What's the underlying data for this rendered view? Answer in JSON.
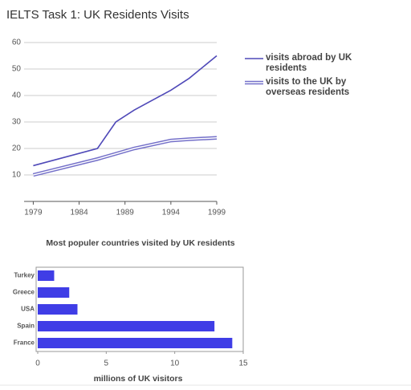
{
  "page_title": "IELTS Task 1: UK Residents Visits",
  "chart_data": [
    {
      "type": "line",
      "x": [
        1979,
        1986,
        1988,
        1990,
        1994,
        1996,
        1999
      ],
      "xlim": [
        1978,
        1999
      ],
      "xticks": [
        1979,
        1984,
        1989,
        1994,
        1999
      ],
      "ylim": [
        0,
        60
      ],
      "yticks": [
        10,
        20,
        30,
        40,
        50,
        60
      ],
      "grid": true,
      "series": [
        {
          "name": "visits abroad by UK residents",
          "color": "#4f49b8",
          "values": [
            13.5,
            20,
            30,
            34.5,
            42,
            46.5,
            55
          ]
        },
        {
          "name": "visits to the UK by overseas residents",
          "color": "#7470c9",
          "values": [
            10,
            16,
            18,
            20,
            23,
            23.5,
            24
          ]
        }
      ]
    },
    {
      "type": "hbar",
      "title": "Most populer countries visited by UK residents",
      "categories": [
        "Turkey",
        "Greece",
        "USA",
        "Spain",
        "France"
      ],
      "values": [
        1.2,
        2.3,
        2.9,
        12.9,
        14.2
      ],
      "color": "#3f3de6",
      "xlim": [
        0,
        15
      ],
      "xticks": [
        0,
        5,
        10,
        15
      ],
      "xlabel": "millions of UK visitors"
    }
  ]
}
